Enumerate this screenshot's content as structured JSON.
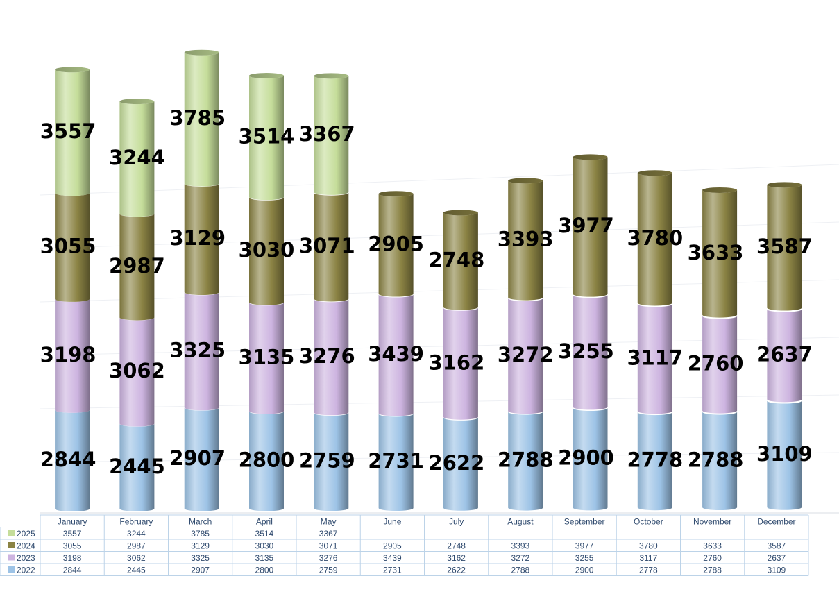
{
  "chart_data": {
    "type": "bar",
    "stacked": true,
    "style": "3d-cylinder",
    "title": "",
    "xlabel": "",
    "ylabel": "",
    "ylim": [
      0,
      14000
    ],
    "grid": true,
    "legend_placement": "data-table-left",
    "categories": [
      "January",
      "February",
      "March",
      "April",
      "May",
      "June",
      "July",
      "August",
      "September",
      "October",
      "November",
      "December"
    ],
    "series": [
      {
        "name": "2022",
        "color": "#9dc3e6",
        "values": [
          2844,
          2445,
          2907,
          2800,
          2759,
          2731,
          2622,
          2788,
          2900,
          2778,
          2788,
          3109
        ]
      },
      {
        "name": "2023",
        "color": "#cdb4e0",
        "values": [
          3198,
          3062,
          3325,
          3135,
          3276,
          3439,
          3162,
          3272,
          3255,
          3117,
          2760,
          2637
        ]
      },
      {
        "name": "2024",
        "color": "#8b8344",
        "values": [
          3055,
          2987,
          3129,
          3030,
          3071,
          2905,
          2748,
          3393,
          3977,
          3780,
          3633,
          3587
        ]
      },
      {
        "name": "2025",
        "color": "#c5dd9a",
        "values": [
          3557,
          3244,
          3785,
          3514,
          3367,
          null,
          null,
          null,
          null,
          null,
          null,
          null
        ]
      }
    ],
    "data_table": true
  }
}
